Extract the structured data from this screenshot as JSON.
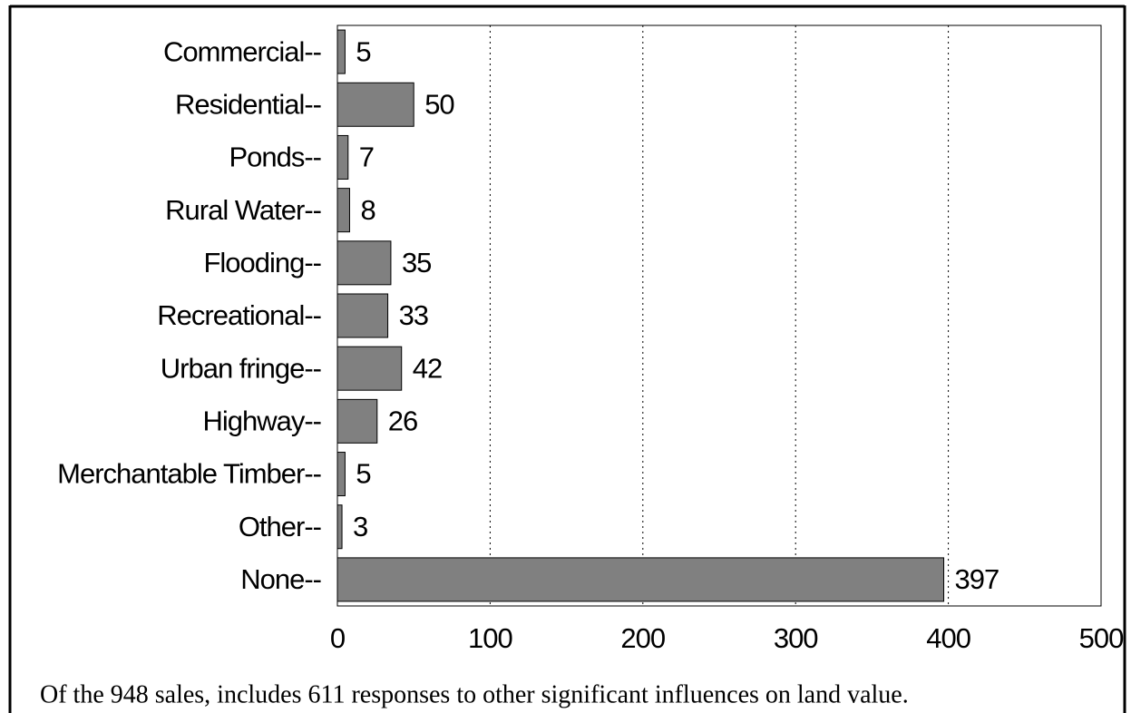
{
  "chart_data": {
    "type": "bar",
    "orientation": "horizontal",
    "categories": [
      "Commercial--",
      "Residential--",
      "Ponds--",
      "Rural Water--",
      "Flooding--",
      "Recreational--",
      "Urban fringe--",
      "Highway--",
      "Merchantable Timber--",
      "Other--",
      "None--"
    ],
    "values": [
      5,
      50,
      7,
      8,
      35,
      33,
      42,
      26,
      5,
      3,
      397
    ],
    "color": "#808080",
    "xlim": [
      0,
      500
    ],
    "xticks": [
      0,
      100,
      200,
      300,
      400,
      500
    ],
    "grid": true,
    "caption": "Of the 948 sales, includes 611 responses to other significant influences on land value."
  }
}
